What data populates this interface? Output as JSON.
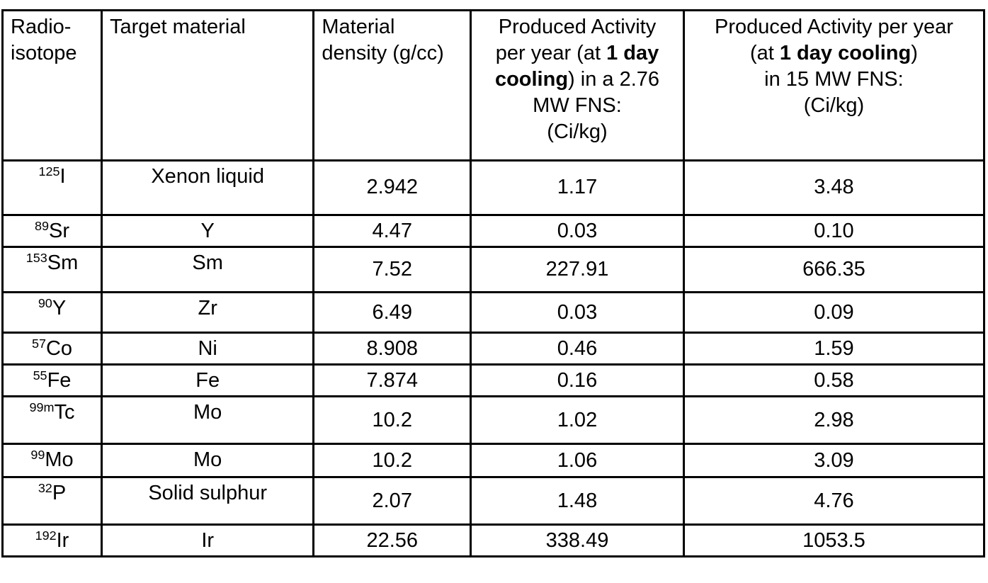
{
  "colors": {
    "text": "#000000",
    "border": "#000000",
    "background": "#ffffff"
  },
  "table": {
    "columns": [
      {
        "id": "isotope",
        "align": "left",
        "header_lines": [
          [
            {
              "t": "Radio-",
              "b": false
            }
          ],
          [
            {
              "t": "isotope",
              "b": false
            }
          ]
        ]
      },
      {
        "id": "target",
        "align": "left",
        "header_lines": [
          [
            {
              "t": "Target material",
              "b": false
            }
          ]
        ]
      },
      {
        "id": "density",
        "align": "left",
        "header_lines": [
          [
            {
              "t": "Material",
              "b": false
            }
          ],
          [
            {
              "t": "density (g/cc)",
              "b": false
            }
          ]
        ]
      },
      {
        "id": "activity_2_76",
        "align": "center",
        "header_lines": [
          [
            {
              "t": "Produced Activity",
              "b": false
            }
          ],
          [
            {
              "t": "per year (at ",
              "b": false
            },
            {
              "t": "1 day",
              "b": true
            }
          ],
          [
            {
              "t": "cooling",
              "b": true
            },
            {
              "t": ") in a 2.76",
              "b": false
            }
          ],
          [
            {
              "t": "MW FNS:",
              "b": false
            }
          ],
          [
            {
              "t": "(Ci/kg)",
              "b": false
            }
          ]
        ]
      },
      {
        "id": "activity_15",
        "align": "center",
        "header_lines": [
          [
            {
              "t": "Produced Activity per year",
              "b": false
            }
          ],
          [
            {
              "t": "(at ",
              "b": false
            },
            {
              "t": "1 day cooling",
              "b": true
            },
            {
              "t": ")",
              "b": false
            }
          ],
          [
            {
              "t": "in 15 MW FNS:",
              "b": false
            }
          ],
          [
            {
              "t": "(Ci/kg)",
              "b": false
            }
          ]
        ]
      }
    ],
    "rows": [
      {
        "isotope": {
          "mass": "125",
          "symbol": "I"
        },
        "target": "Xenon liquid",
        "density": "2.942",
        "activity_2_76": "1.17",
        "activity_15": "3.48"
      },
      {
        "isotope": {
          "mass": "89",
          "symbol": "Sr"
        },
        "target": "Y",
        "density": "4.47",
        "activity_2_76": "0.03",
        "activity_15": "0.10"
      },
      {
        "isotope": {
          "mass": "153",
          "symbol": "Sm"
        },
        "target": "Sm",
        "density": "7.52",
        "activity_2_76": "227.91",
        "activity_15": "666.35"
      },
      {
        "isotope": {
          "mass": "90",
          "symbol": "Y"
        },
        "target": "Zr",
        "density": "6.49",
        "activity_2_76": "0.03",
        "activity_15": "0.09"
      },
      {
        "isotope": {
          "mass": "57",
          "symbol": "Co"
        },
        "target": "Ni",
        "density": "8.908",
        "activity_2_76": "0.46",
        "activity_15": "1.59"
      },
      {
        "isotope": {
          "mass": "55",
          "symbol": "Fe"
        },
        "target": "Fe",
        "density": "7.874",
        "activity_2_76": "0.16",
        "activity_15": "0.58"
      },
      {
        "isotope": {
          "mass": "99m",
          "symbol": "Tc"
        },
        "target": "Mo",
        "density": "10.2",
        "activity_2_76": "1.02",
        "activity_15": "2.98"
      },
      {
        "isotope": {
          "mass": "99",
          "symbol": "Mo"
        },
        "target": "Mo",
        "density": "10.2",
        "activity_2_76": "1.06",
        "activity_15": "3.09"
      },
      {
        "isotope": {
          "mass": "32",
          "symbol": "P"
        },
        "target": "Solid sulphur",
        "density": "2.07",
        "activity_2_76": "1.48",
        "activity_15": "4.76"
      },
      {
        "isotope": {
          "mass": "192",
          "symbol": "Ir"
        },
        "target": "Ir",
        "density": "22.56",
        "activity_2_76": "338.49",
        "activity_15": "1053.5"
      }
    ]
  }
}
